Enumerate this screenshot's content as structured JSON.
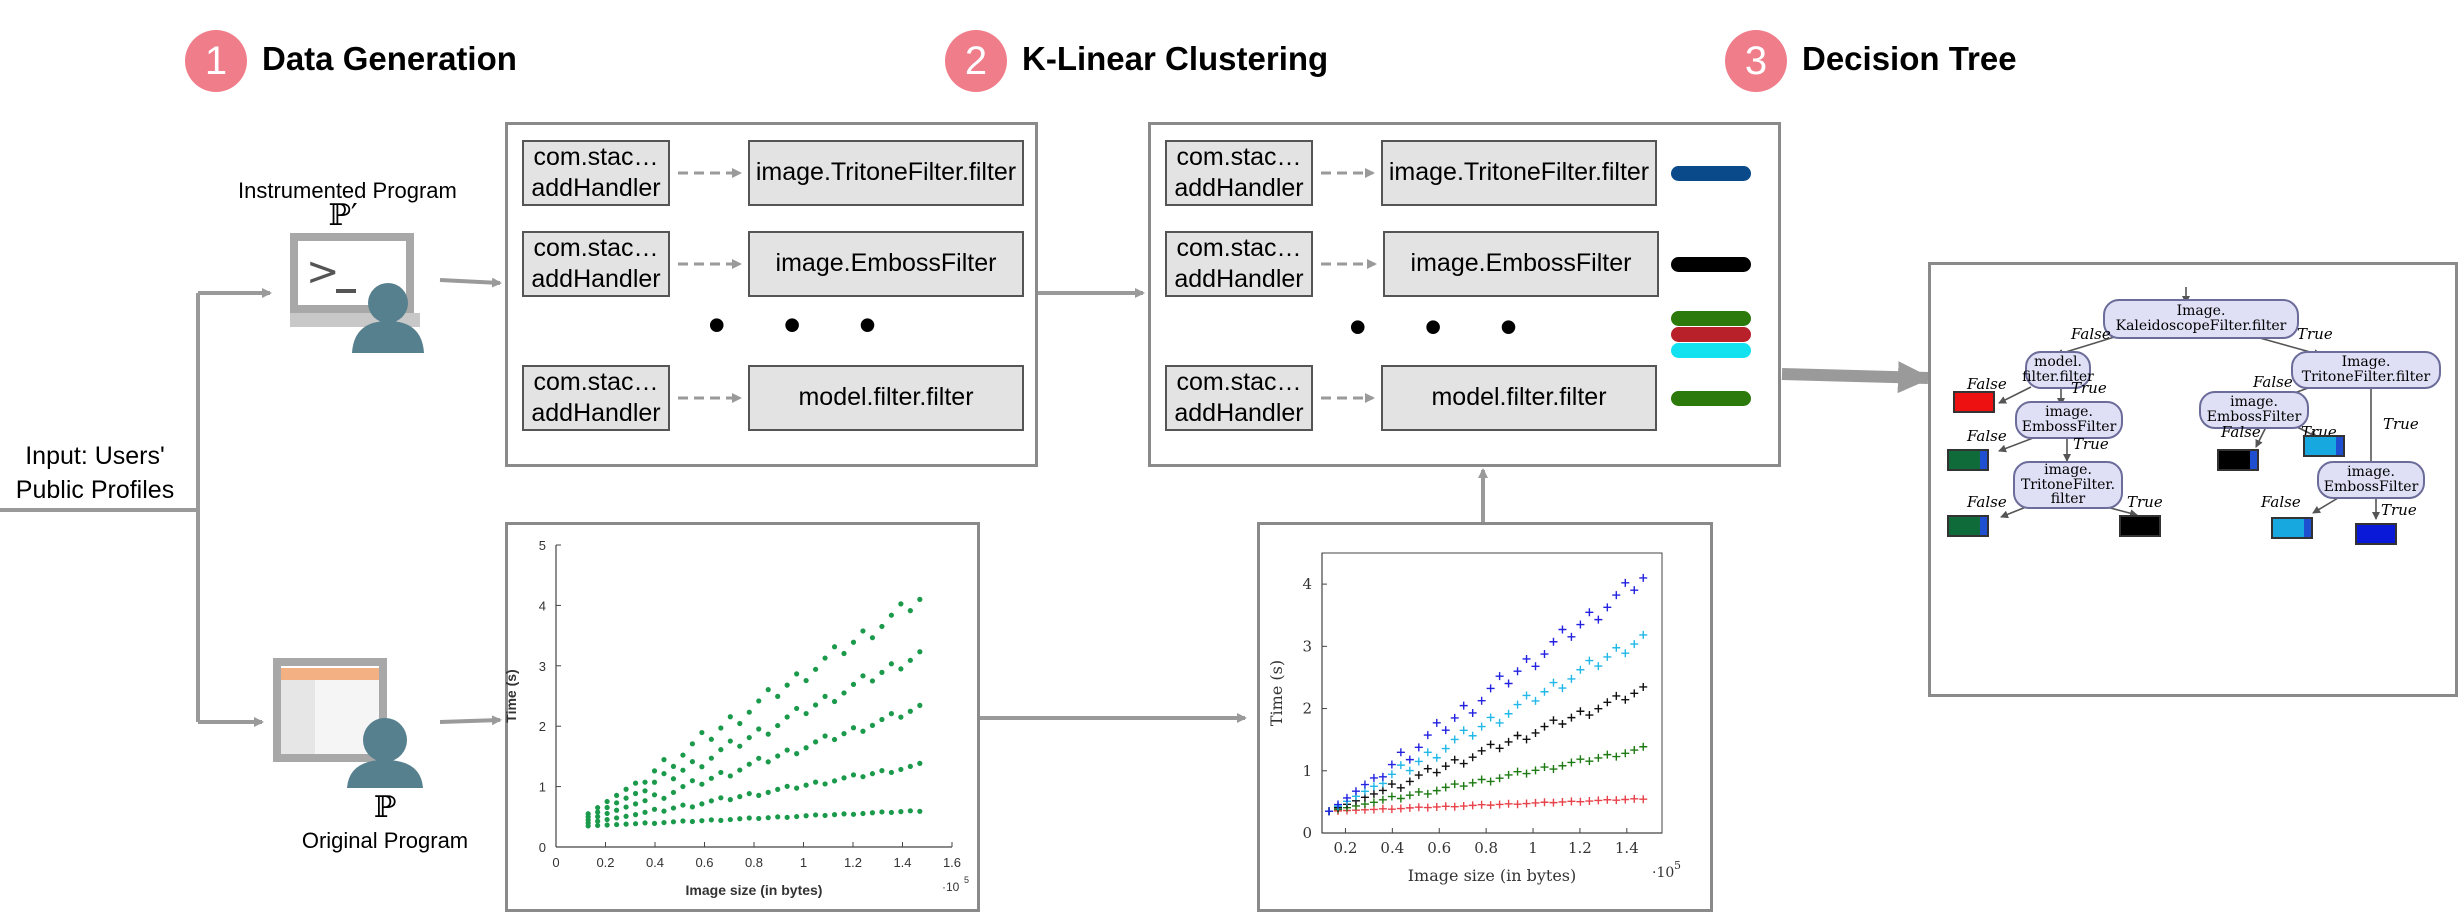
{
  "steps": [
    {
      "number": "1",
      "title": "Data Generation"
    },
    {
      "number": "2",
      "title": "K-Linear Clustering"
    },
    {
      "number": "3",
      "title": "Decision Tree"
    }
  ],
  "input_label": {
    "line1": "Input: Users'",
    "line2": "Public Profiles"
  },
  "instrumented": {
    "caption": "Instrumented Program",
    "symbol": "ℙ′"
  },
  "original": {
    "symbol": "ℙ",
    "caption": "Original Program"
  },
  "panel1": {
    "rows": [
      {
        "source_line1": "com.stac…",
        "source_line2": "addHandler",
        "target": "image.TritoneFilter.filter"
      },
      {
        "source_line1": "com.stac…",
        "source_line2": "addHandler",
        "target": "image.EmbossFilter"
      },
      {
        "source_line1": "com.stac…",
        "source_line2": "addHandler",
        "target": "model.filter.filter"
      }
    ],
    "ellipsis": "• • •"
  },
  "panel2": {
    "rows": [
      {
        "source_line1": "com.stac…",
        "source_line2": "addHandler",
        "target": "image.TritoneFilter.filter"
      },
      {
        "source_line1": "com.stac…",
        "source_line2": "addHandler",
        "target": "image.EmbossFilter"
      },
      {
        "source_line1": "com.stac…",
        "source_line2": "addHandler",
        "target": "model.filter.filter"
      }
    ],
    "ellipsis": "• • •",
    "colors": {
      "row1": "#0a4a8a",
      "row2": "#000000",
      "mid": [
        "#2b7a0b",
        "#b8202a",
        "#12e2f0"
      ],
      "row3": "#2b7a0b"
    }
  },
  "chart_data": [
    {
      "type": "scatter",
      "title": "",
      "xlabel": "Image size (in bytes)",
      "ylabel": "Time (s)",
      "x_multiplier_label": "·10",
      "x_multiplier_exp": "5",
      "xlim": [
        0,
        1.6
      ],
      "ylim": [
        0,
        5
      ],
      "xticks": [
        "0",
        "0.2",
        "0.4",
        "0.6",
        "0.8",
        "1",
        "1.2",
        "1.4",
        "1.6"
      ],
      "yticks": [
        "0",
        "1",
        "2",
        "3",
        "4",
        "5"
      ],
      "marker": "dot",
      "series": [
        {
          "color": "#1a9a4a",
          "x_range": [
            0.13,
            1.47
          ],
          "y_start": 0.35,
          "y_end": 0.6
        },
        {
          "color": "#1a9a4a",
          "x_range": [
            0.13,
            1.47
          ],
          "y_start": 0.4,
          "y_end": 1.35
        },
        {
          "color": "#1a9a4a",
          "x_range": [
            0.13,
            1.47
          ],
          "y_start": 0.45,
          "y_end": 2.3
        },
        {
          "color": "#1a9a4a",
          "x_range": [
            0.13,
            1.47
          ],
          "y_start": 0.5,
          "y_end": 3.2
        },
        {
          "color": "#1a9a4a",
          "x_range": [
            0.13,
            1.47
          ],
          "y_start": 0.55,
          "y_end": 4.1
        }
      ]
    },
    {
      "type": "scatter",
      "title": "",
      "xlabel": "Image size (in bytes)",
      "ylabel": "Time (s)",
      "x_multiplier_label": "·10",
      "x_multiplier_exp": "5",
      "xlim": [
        0.1,
        1.55
      ],
      "ylim": [
        0,
        4.5
      ],
      "xticks": [
        "0.2",
        "0.4",
        "0.6",
        "0.8",
        "1",
        "1.2",
        "1.4"
      ],
      "yticks": [
        "0",
        "1",
        "2",
        "3",
        "4"
      ],
      "marker": "plus",
      "series": [
        {
          "color": "#e8424a",
          "x_range": [
            0.13,
            1.47
          ],
          "y_start": 0.35,
          "y_end": 0.55
        },
        {
          "color": "#1e7a12",
          "x_range": [
            0.13,
            1.47
          ],
          "y_start": 0.35,
          "y_end": 1.35
        },
        {
          "color": "#111111",
          "x_range": [
            0.13,
            1.47
          ],
          "y_start": 0.35,
          "y_end": 2.3
        },
        {
          "color": "#22b8e8",
          "x_range": [
            0.13,
            1.47
          ],
          "y_start": 0.35,
          "y_end": 3.15
        },
        {
          "color": "#2222e0",
          "x_range": [
            0.13,
            1.47
          ],
          "y_start": 0.35,
          "y_end": 4.1
        }
      ]
    }
  ],
  "tree": {
    "root": {
      "line1": "Image.",
      "line2": "KaleidoscopeFilter.filter"
    },
    "n_model": {
      "line1": "model.",
      "line2": "filter.filter"
    },
    "n_emboss_left": {
      "line1": "image.",
      "line2": "EmbossFilter"
    },
    "n_tritone_left": {
      "line1": "image.",
      "line2": "TritoneFilter.",
      "line3": "filter"
    },
    "n_tritone_right": {
      "line1": "Image.",
      "line2": "TritoneFilter.filter"
    },
    "n_emboss_right": {
      "line1": "image.",
      "line2": "EmbossFilter"
    },
    "n_emboss_right2": {
      "line1": "image.",
      "line2": "EmbossFilter"
    },
    "labels": {
      "false": "False",
      "true": "True"
    },
    "leaf_colors": {
      "red": "#ee1111",
      "green": "#0f6b3a",
      "black": "#000000",
      "cyan": "#17a8e0",
      "blue": "#0a18d8",
      "sliver": "#1d4fd0"
    }
  }
}
